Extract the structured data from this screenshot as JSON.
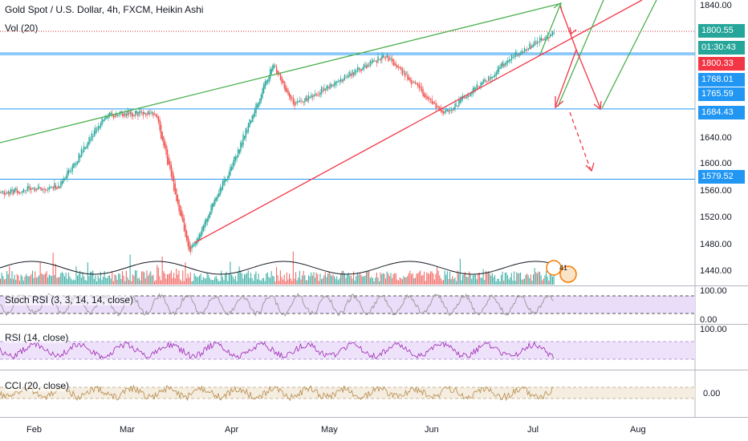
{
  "header": {
    "title": "Gold Spot / U.S. Dollar, 4h, FXCM, Heikin Ashi",
    "vol_label": "Vol (20)"
  },
  "price_axis": {
    "ticks": [
      "1840.00",
      "1640.00",
      "1600.00",
      "1560.00",
      "1520.00",
      "1480.00",
      "1440.00"
    ]
  },
  "price_labels": [
    {
      "text": "1800.55",
      "color": "#26a69a",
      "kind": "last-price"
    },
    {
      "text": "01:30:43",
      "color": "#26a69a",
      "kind": "countdown"
    },
    {
      "text": "1800.33",
      "color": "#f23645",
      "kind": "line"
    },
    {
      "text": "1768.01",
      "color": "#2196f3",
      "kind": "line"
    },
    {
      "text": "1765.59",
      "color": "#2196f3",
      "kind": "line"
    },
    {
      "text": "1684.43",
      "color": "#2196f3",
      "kind": "line"
    },
    {
      "text": "1579.52",
      "color": "#2196f3",
      "kind": "line"
    }
  ],
  "time_axis": {
    "labels": [
      "Feb",
      "Mar",
      "Apr",
      "May",
      "Jun",
      "Jul",
      "Aug"
    ]
  },
  "indicators": [
    {
      "label": "Stoch RSI (3, 3, 14, 14, close)",
      "ticks": [
        "100.00",
        "0.00"
      ]
    },
    {
      "label": "RSI (14, close)",
      "ticks": [
        "100.00"
      ]
    },
    {
      "label": "CCI (20, close)",
      "ticks": [
        "0.00"
      ]
    }
  ],
  "badge": {
    "text": "41"
  },
  "colors": {
    "up": "#26a69a",
    "down": "#ef5350",
    "hline": "#2196f3",
    "green_trend": "#4caf50",
    "red_trend": "#f23645",
    "band": "#e1d5f7"
  },
  "chart_data": {
    "type": "candlestick",
    "style": "Heikin Ashi",
    "symbol": "Gold Spot / U.S. Dollar",
    "interval": "4h",
    "source": "FXCM",
    "ylim": [
      1415,
      1855
    ],
    "x_months": [
      "Feb",
      "Mar",
      "Apr",
      "May",
      "Jun",
      "Jul",
      "Aug"
    ],
    "horizontal_lines": [
      1800.55,
      1800.33,
      1768.01,
      1765.59,
      1684.43,
      1579.52
    ],
    "approx_close_path": [
      {
        "x": "Jan 20",
        "y": 1558
      },
      {
        "x": "Feb 10",
        "y": 1570
      },
      {
        "x": "Feb 24",
        "y": 1675
      },
      {
        "x": "Mar 9",
        "y": 1680
      },
      {
        "x": "Mar 19",
        "y": 1470
      },
      {
        "x": "Apr 1",
        "y": 1600
      },
      {
        "x": "Apr 14",
        "y": 1750
      },
      {
        "x": "Apr 21",
        "y": 1690
      },
      {
        "x": "May 18",
        "y": 1765
      },
      {
        "x": "Jun 5",
        "y": 1676
      },
      {
        "x": "Jun 26",
        "y": 1765
      },
      {
        "x": "Jul 8",
        "y": 1800
      }
    ]
  }
}
